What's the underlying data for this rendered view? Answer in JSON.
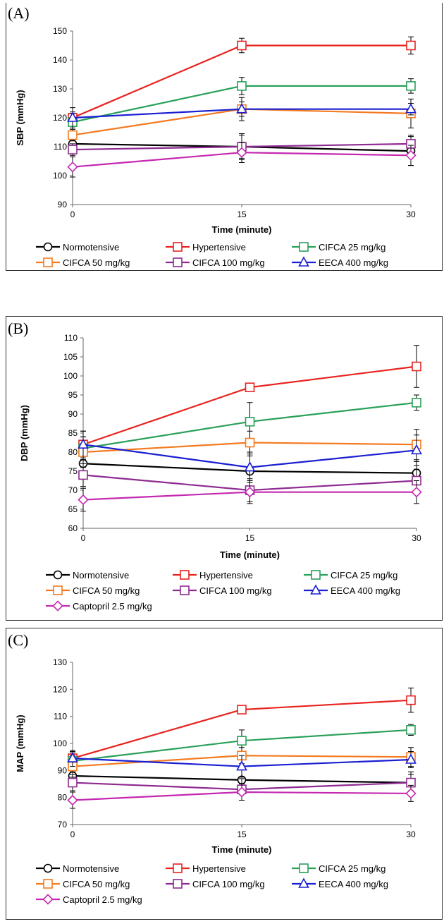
{
  "legend_order": [
    "Normotensive",
    "Hypertensive",
    "CIFCA 25 mg/kg",
    "CIFCA 50 mg/kg",
    "CIFCA 100 mg/kg",
    "EECA 400 mg/kg",
    "Captopril 2.5 mg/kg"
  ],
  "series_style": [
    {
      "name": "Normotensive",
      "color": "#000000",
      "marker": "circle"
    },
    {
      "name": "Hypertensive",
      "color": "#e8231f",
      "marker": "square"
    },
    {
      "name": "CIFCA 25 mg/kg",
      "color": "#2aa05a",
      "marker": "square"
    },
    {
      "name": "CIFCA 50 mg/kg",
      "color": "#f47a20",
      "marker": "square"
    },
    {
      "name": "CIFCA 100 mg/kg",
      "color": "#8e2a91",
      "marker": "square"
    },
    {
      "name": "EECA 400 mg/kg",
      "color": "#1a1fd1",
      "marker": "triangle"
    },
    {
      "name": "Captopril 2.5 mg/kg",
      "color": "#c528b0",
      "marker": "diamond"
    }
  ],
  "chart_data": [
    {
      "type": "line",
      "panel_label": "(A)",
      "xlabel": "Time (minute)",
      "ylabel": "SBP (mmHg)",
      "x": [
        0,
        15,
        30
      ],
      "x_ticks": [
        "0",
        "15",
        "30"
      ],
      "ylim": [
        90,
        150
      ],
      "y_ticks": [
        90,
        100,
        110,
        120,
        130,
        140,
        150
      ],
      "series": [
        {
          "name": "Normotensive",
          "values": [
            111,
            110,
            108.5
          ],
          "err": [
            1.5,
            4,
            5
          ]
        },
        {
          "name": "Hypertensive",
          "values": [
            120,
            145,
            145
          ],
          "err": [
            2,
            2.5,
            3
          ]
        },
        {
          "name": "CIFCA 25 mg/kg",
          "values": [
            118.5,
            131,
            131
          ],
          "err": [
            3,
            3,
            2.5
          ]
        },
        {
          "name": "CIFCA 50 mg/kg",
          "values": [
            114,
            123,
            121.5
          ],
          "err": [
            2,
            2.5,
            5
          ]
        },
        {
          "name": "CIFCA 100 mg/kg",
          "values": [
            109,
            110,
            111
          ],
          "err": [
            2,
            4.5,
            3
          ]
        },
        {
          "name": "EECA 400 mg/kg",
          "values": [
            120,
            123,
            123
          ],
          "err": [
            3.5,
            4,
            2
          ]
        },
        {
          "name": "Captopril 2.5 mg/kg",
          "values": [
            103,
            108,
            107
          ],
          "err": [
            3.5,
            3.5,
            3.5
          ]
        }
      ]
    },
    {
      "type": "line",
      "panel_label": "(B)",
      "xlabel": "Time (minute)",
      "ylabel": "DBP (mmHg)",
      "x": [
        0,
        15,
        30
      ],
      "x_ticks": [
        "0",
        "15",
        "30"
      ],
      "ylim": [
        60,
        110
      ],
      "y_ticks": [
        60,
        65,
        70,
        75,
        80,
        85,
        90,
        95,
        100,
        105,
        110
      ],
      "series": [
        {
          "name": "Normotensive",
          "values": [
            77,
            75,
            74.5
          ],
          "err": [
            1,
            4,
            3
          ]
        },
        {
          "name": "Hypertensive",
          "values": [
            82,
            97,
            102.5
          ],
          "err": [
            2,
            1,
            5.5
          ]
        },
        {
          "name": "CIFCA 25 mg/kg",
          "values": [
            81,
            88,
            93
          ],
          "err": [
            3,
            5,
            2
          ]
        },
        {
          "name": "CIFCA 50 mg/kg",
          "values": [
            80,
            82.5,
            82
          ],
          "err": [
            5.5,
            3,
            4
          ]
        },
        {
          "name": "CIFCA 100 mg/kg",
          "values": [
            74,
            70,
            72.5
          ],
          "err": [
            3,
            3,
            3
          ]
        },
        {
          "name": "EECA 400 mg/kg",
          "values": [
            82,
            76,
            80.5
          ],
          "err": [
            3.5,
            4,
            4
          ]
        },
        {
          "name": "Captopril 2.5 mg/kg",
          "values": [
            67.5,
            69.5,
            69.5
          ],
          "err": [
            3,
            3,
            3
          ]
        }
      ]
    },
    {
      "type": "line",
      "panel_label": "(C)",
      "xlabel": "Time (minute)",
      "ylabel": "MAP (mmHg)",
      "x": [
        0,
        15,
        30
      ],
      "x_ticks": [
        "0",
        "15",
        "30"
      ],
      "ylim": [
        70,
        130
      ],
      "y_ticks": [
        70,
        80,
        90,
        100,
        110,
        120,
        130
      ],
      "series": [
        {
          "name": "Normotensive",
          "values": [
            88,
            86.5,
            85.5
          ],
          "err": [
            1.5,
            4.5,
            4
          ]
        },
        {
          "name": "Hypertensive",
          "values": [
            94.5,
            112.5,
            116
          ],
          "err": [
            2,
            1.5,
            4.5
          ]
        },
        {
          "name": "CIFCA 25 mg/kg",
          "values": [
            93.5,
            101,
            105
          ],
          "err": [
            3.5,
            4,
            2
          ]
        },
        {
          "name": "CIFCA 50 mg/kg",
          "values": [
            91.5,
            95.5,
            95
          ],
          "err": [
            4,
            3,
            3.5
          ]
        },
        {
          "name": "CIFCA 100 mg/kg",
          "values": [
            85.5,
            83,
            85.5
          ],
          "err": [
            3,
            4,
            3
          ]
        },
        {
          "name": "EECA 400 mg/kg",
          "values": [
            94.5,
            91.5,
            94
          ],
          "err": [
            3,
            4,
            3
          ]
        },
        {
          "name": "Captopril 2.5 mg/kg",
          "values": [
            79,
            82,
            81.5
          ],
          "err": [
            3,
            3,
            3
          ]
        }
      ]
    }
  ]
}
